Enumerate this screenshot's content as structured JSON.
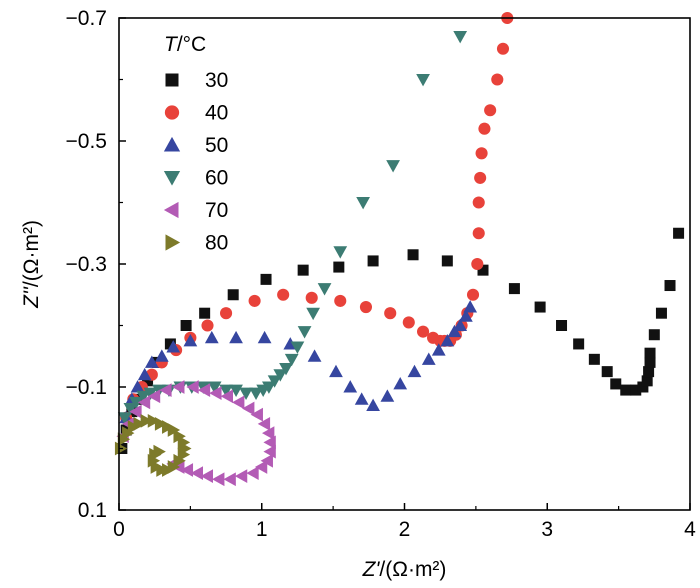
{
  "chart_data": {
    "type": "scatter",
    "title": "",
    "xlabel_italic": "Z'",
    "xlabel_rest": "/(Ω·m²)",
    "ylabel_italic": "Z''",
    "ylabel_rest": "/(Ω·m²)",
    "xlim": [
      0,
      4
    ],
    "ylim": [
      0.1,
      -0.7
    ],
    "x_ticks": [
      0,
      1,
      2,
      3,
      4
    ],
    "x_tick_labels": [
      "0",
      "1",
      "2",
      "3",
      "4"
    ],
    "y_ticks": [
      0.1,
      -0.1,
      -0.3,
      -0.5,
      -0.7
    ],
    "y_tick_labels": [
      "0.1",
      "−0.1",
      "−0.3",
      "−0.5",
      "−0.7"
    ],
    "grid": false,
    "legend_title_italic": "T",
    "legend_title_rest": "/°C",
    "legend_position": "top-left",
    "series": [
      {
        "name": "30",
        "marker": "square",
        "color": "#111111",
        "x": [
          0.02,
          0.05,
          0.09,
          0.14,
          0.2,
          0.27,
          0.36,
          0.47,
          0.6,
          0.8,
          1.03,
          1.29,
          1.54,
          1.78,
          2.06,
          2.3,
          2.55,
          2.77,
          2.95,
          3.1,
          3.22,
          3.33,
          3.42,
          3.48,
          3.55,
          3.62,
          3.67,
          3.7,
          3.71,
          3.72,
          3.72,
          3.75,
          3.8,
          3.86,
          3.92
        ],
        "y": [
          0.0,
          -0.03,
          -0.06,
          -0.08,
          -0.11,
          -0.14,
          -0.17,
          -0.2,
          -0.22,
          -0.25,
          -0.275,
          -0.29,
          -0.295,
          -0.305,
          -0.315,
          -0.305,
          -0.29,
          -0.26,
          -0.23,
          -0.2,
          -0.17,
          -0.145,
          -0.125,
          -0.105,
          -0.095,
          -0.095,
          -0.1,
          -0.11,
          -0.125,
          -0.14,
          -0.155,
          -0.185,
          -0.22,
          -0.265,
          -0.35
        ]
      },
      {
        "name": "40",
        "marker": "circle",
        "color": "#e8423a",
        "x": [
          0.05,
          0.1,
          0.16,
          0.23,
          0.3,
          0.4,
          0.5,
          0.62,
          0.75,
          0.95,
          1.15,
          1.35,
          1.55,
          1.73,
          1.9,
          2.03,
          2.13,
          2.2,
          2.25,
          2.28,
          2.32,
          2.36,
          2.4,
          2.44,
          2.48,
          2.51,
          2.52,
          2.52,
          2.53,
          2.54,
          2.56,
          2.6,
          2.65,
          2.69,
          2.72
        ],
        "y": [
          -0.05,
          -0.08,
          -0.1,
          -0.12,
          -0.14,
          -0.16,
          -0.18,
          -0.2,
          -0.22,
          -0.24,
          -0.25,
          -0.245,
          -0.24,
          -0.23,
          -0.22,
          -0.205,
          -0.19,
          -0.18,
          -0.175,
          -0.175,
          -0.175,
          -0.185,
          -0.2,
          -0.22,
          -0.25,
          -0.3,
          -0.35,
          -0.4,
          -0.44,
          -0.48,
          -0.52,
          -0.55,
          -0.6,
          -0.65,
          -0.7
        ]
      },
      {
        "name": "50",
        "marker": "triangle-up",
        "color": "#3646a0",
        "x": [
          0.05,
          0.09,
          0.13,
          0.18,
          0.23,
          0.3,
          0.38,
          0.5,
          0.65,
          0.82,
          1.02,
          1.2,
          1.37,
          1.52,
          1.62,
          1.7,
          1.78,
          1.88,
          1.97,
          2.07,
          2.17,
          2.24,
          2.3,
          2.35,
          2.39,
          2.43,
          2.46
        ],
        "y": [
          -0.05,
          -0.08,
          -0.1,
          -0.12,
          -0.14,
          -0.15,
          -0.165,
          -0.175,
          -0.18,
          -0.18,
          -0.18,
          -0.17,
          -0.15,
          -0.125,
          -0.1,
          -0.08,
          -0.07,
          -0.085,
          -0.105,
          -0.125,
          -0.145,
          -0.16,
          -0.175,
          -0.19,
          -0.2,
          -0.215,
          -0.23
        ]
      },
      {
        "name": "60",
        "marker": "triangle-down",
        "color": "#3c7c73",
        "x": [
          0.04,
          0.08,
          0.12,
          0.17,
          0.22,
          0.28,
          0.35,
          0.43,
          0.51,
          0.59,
          0.67,
          0.75,
          0.82,
          0.89,
          0.96,
          1.01,
          1.05,
          1.09,
          1.13,
          1.17,
          1.21,
          1.25,
          1.3,
          1.36,
          1.44,
          1.55,
          1.71,
          1.92,
          2.13,
          2.39
        ],
        "y": [
          -0.05,
          -0.065,
          -0.075,
          -0.085,
          -0.09,
          -0.095,
          -0.095,
          -0.1,
          -0.1,
          -0.1,
          -0.1,
          -0.095,
          -0.095,
          -0.09,
          -0.09,
          -0.095,
          -0.1,
          -0.11,
          -0.12,
          -0.13,
          -0.145,
          -0.165,
          -0.19,
          -0.22,
          -0.26,
          -0.32,
          -0.4,
          -0.46,
          -0.6,
          -0.67
        ]
      },
      {
        "name": "70",
        "marker": "triangle-left",
        "color": "#b35bb5",
        "x": [
          0.03,
          0.07,
          0.12,
          0.18,
          0.25,
          0.33,
          0.42,
          0.52,
          0.6,
          0.68,
          0.76,
          0.84,
          0.91,
          0.97,
          1.02,
          1.05,
          1.06,
          1.06,
          1.04,
          1.0,
          0.94,
          0.86,
          0.78,
          0.7,
          0.62,
          0.55,
          0.48,
          0.42,
          0.38
        ],
        "y": [
          -0.02,
          -0.04,
          -0.06,
          -0.075,
          -0.085,
          -0.095,
          -0.1,
          -0.1,
          -0.095,
          -0.09,
          -0.085,
          -0.075,
          -0.065,
          -0.055,
          -0.04,
          -0.025,
          -0.01,
          0.005,
          0.02,
          0.03,
          0.04,
          0.045,
          0.05,
          0.05,
          0.045,
          0.04,
          0.035,
          0.03,
          0.025
        ]
      },
      {
        "name": "80",
        "marker": "triangle-right",
        "color": "#7d7a2a",
        "x": [
          0.01,
          0.03,
          0.06,
          0.1,
          0.14,
          0.19,
          0.24,
          0.29,
          0.34,
          0.38,
          0.42,
          0.45,
          0.46,
          0.45,
          0.42,
          0.38,
          0.34,
          0.3,
          0.26,
          0.24,
          0.25,
          0.28
        ],
        "y": [
          -0.0,
          -0.015,
          -0.025,
          -0.035,
          -0.04,
          -0.045,
          -0.045,
          -0.04,
          -0.035,
          -0.03,
          -0.02,
          -0.01,
          0.0,
          0.01,
          0.02,
          0.03,
          0.035,
          0.035,
          0.03,
          0.02,
          0.01,
          0.005
        ]
      }
    ]
  }
}
